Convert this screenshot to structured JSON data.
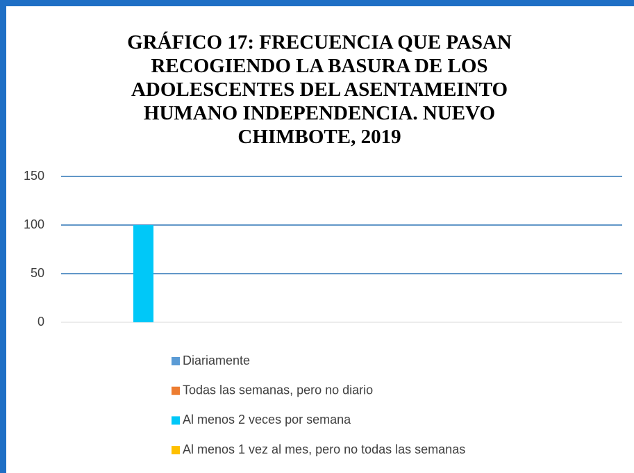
{
  "chart_data": {
    "type": "bar",
    "title": "GRÁFICO 17: FRECUENCIA QUE PASAN RECOGIENDO LA BASURA DE LOS ADOLESCENTES DEL ASENTAMEINTO HUMANO INDEPENDENCIA. NUEVO CHIMBOTE, 2019",
    "categories": [
      null
    ],
    "series": [
      {
        "name": "Diariamente",
        "color": "#5b9bd5",
        "values": [
          0
        ]
      },
      {
        "name": "Todas las semanas, pero no diario",
        "color": "#ed7d31",
        "values": [
          0
        ]
      },
      {
        "name": "Al menos 2 veces por semana",
        "color": "#00c8f8",
        "values": [
          100
        ]
      },
      {
        "name": "Al menos 1 vez al mes, pero no todas las semanas",
        "color": "#ffc000",
        "values": [
          0
        ]
      }
    ],
    "ylim": [
      0,
      150
    ],
    "yticks": [
      0,
      50,
      100,
      150
    ],
    "grid": true,
    "legend": "bottom"
  }
}
